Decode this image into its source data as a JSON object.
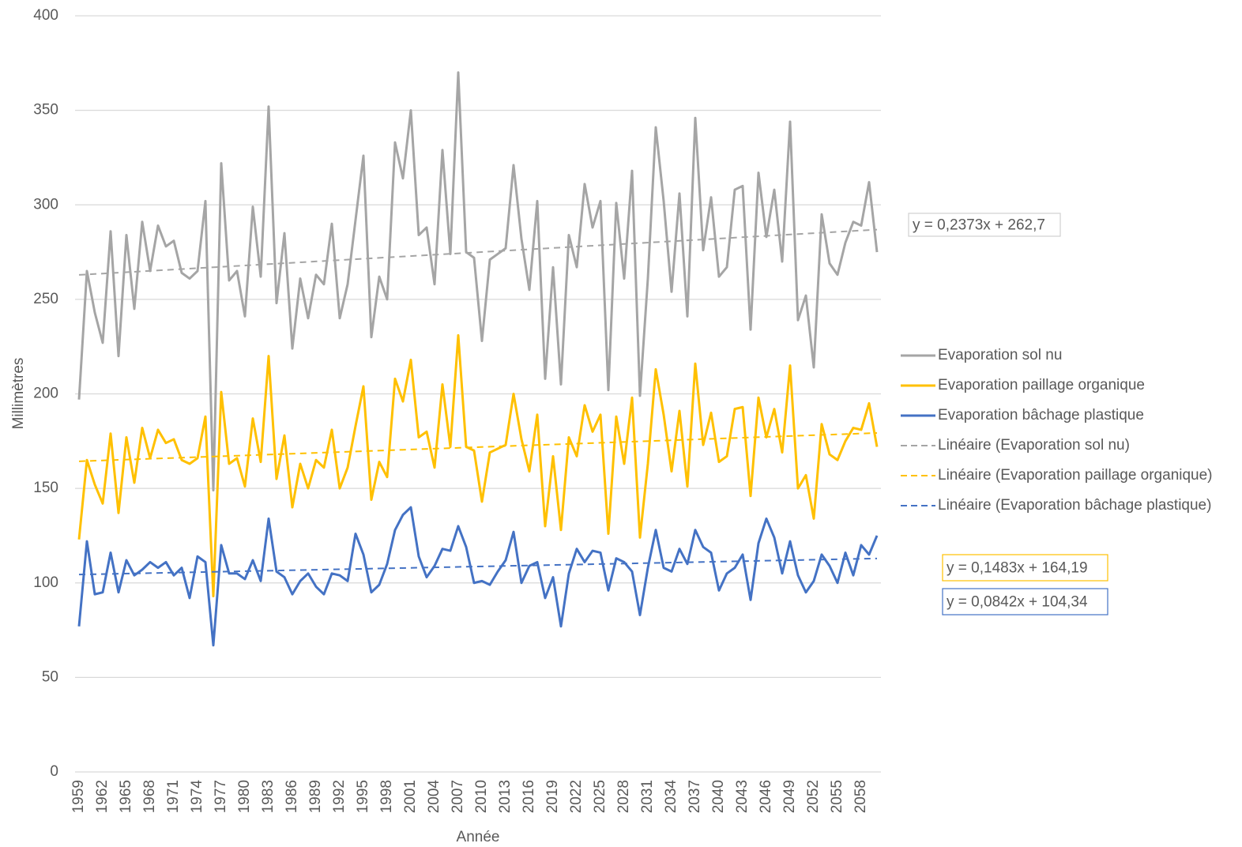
{
  "chart_data": {
    "type": "line",
    "x_label": "Année",
    "y_label": "Millimètres",
    "x": [
      1959,
      1960,
      1961,
      1962,
      1963,
      1964,
      1965,
      1966,
      1967,
      1968,
      1969,
      1970,
      1971,
      1972,
      1973,
      1974,
      1975,
      1976,
      1977,
      1978,
      1979,
      1980,
      1981,
      1982,
      1983,
      1984,
      1985,
      1986,
      1987,
      1988,
      1989,
      1990,
      1991,
      1992,
      1993,
      1994,
      1995,
      1996,
      1997,
      1998,
      1999,
      2000,
      2001,
      2002,
      2003,
      2004,
      2005,
      2006,
      2007,
      2008,
      2009,
      2010,
      2011,
      2012,
      2013,
      2014,
      2015,
      2016,
      2017,
      2018,
      2019,
      2020,
      2021,
      2022,
      2023,
      2024,
      2025,
      2026,
      2027,
      2028,
      2029,
      2030,
      2031,
      2032,
      2033,
      2034,
      2035,
      2036,
      2037,
      2038,
      2039,
      2040,
      2041,
      2042,
      2043,
      2044,
      2045,
      2046,
      2047,
      2048,
      2049,
      2050,
      2051,
      2052,
      2053,
      2054,
      2055,
      2056,
      2057,
      2058,
      2059,
      2060
    ],
    "xlim": [
      1959,
      2060
    ],
    "xticks": [
      1959,
      1962,
      1965,
      1968,
      1971,
      1974,
      1977,
      1980,
      1983,
      1986,
      1989,
      1992,
      1995,
      1998,
      2001,
      2004,
      2007,
      2010,
      2013,
      2016,
      2019,
      2022,
      2025,
      2028,
      2031,
      2034,
      2037,
      2040,
      2043,
      2046,
      2049,
      2052,
      2055,
      2058
    ],
    "ylim": [
      0,
      400
    ],
    "yticks": [
      0,
      50,
      100,
      150,
      200,
      250,
      300,
      350,
      400
    ],
    "grid": true,
    "legend": "right",
    "series": [
      {
        "name": "Evaporation sol nu",
        "color": "#a5a5a5",
        "values": [
          197,
          265,
          243,
          227,
          286,
          220,
          284,
          245,
          291,
          265,
          289,
          278,
          281,
          264,
          261,
          265,
          302,
          149,
          322,
          260,
          265,
          241,
          299,
          262,
          352,
          248,
          285,
          224,
          261,
          240,
          263,
          258,
          290,
          240,
          258,
          292,
          326,
          230,
          262,
          250,
          333,
          314,
          350,
          284,
          288,
          258,
          329,
          274,
          370,
          275,
          272,
          228,
          271,
          274,
          277,
          321,
          282,
          255,
          302,
          208,
          267,
          205,
          284,
          267,
          311,
          288,
          302,
          202,
          301,
          261,
          318,
          199,
          261,
          341,
          302,
          254,
          306,
          241,
          346,
          276,
          304,
          262,
          267,
          308,
          310,
          234,
          317,
          283,
          308,
          270,
          344,
          239,
          252,
          214,
          295,
          269,
          263,
          280,
          291,
          289,
          312,
          275
        ]
      },
      {
        "name": "Evaporation paillage organique",
        "color": "#ffc000",
        "values": [
          123,
          165,
          152,
          142,
          179,
          137,
          177,
          153,
          182,
          166,
          181,
          174,
          176,
          165,
          163,
          166,
          188,
          93,
          201,
          163,
          166,
          151,
          187,
          164,
          220,
          155,
          178,
          140,
          163,
          150,
          165,
          161,
          181,
          150,
          161,
          183,
          204,
          144,
          164,
          156,
          208,
          196,
          218,
          177,
          180,
          161,
          205,
          172,
          231,
          172,
          170,
          143,
          169,
          171,
          173,
          200,
          176,
          159,
          189,
          130,
          167,
          128,
          177,
          167,
          194,
          180,
          189,
          126,
          188,
          163,
          198,
          124,
          163,
          213,
          189,
          159,
          191,
          151,
          216,
          173,
          190,
          164,
          167,
          192,
          193,
          146,
          198,
          177,
          192,
          169,
          215,
          150,
          157,
          134,
          184,
          168,
          165,
          175,
          182,
          181,
          195,
          172
        ]
      },
      {
        "name": "Evaporation bâchage plastique",
        "color": "#4472c4",
        "values": [
          77,
          122,
          94,
          95,
          116,
          95,
          112,
          104,
          107,
          111,
          108,
          111,
          104,
          108,
          92,
          114,
          111,
          67,
          120,
          105,
          105,
          102,
          112,
          101,
          134,
          106,
          103,
          94,
          101,
          105,
          98,
          94,
          105,
          104,
          101,
          126,
          115,
          95,
          99,
          110,
          128,
          136,
          140,
          114,
          103,
          109,
          118,
          117,
          130,
          119,
          100,
          101,
          99,
          106,
          112,
          127,
          100,
          109,
          111,
          92,
          103,
          77,
          105,
          118,
          111,
          117,
          116,
          96,
          113,
          111,
          106,
          83,
          108,
          128,
          108,
          106,
          118,
          110,
          128,
          119,
          116,
          96,
          105,
          108,
          115,
          91,
          121,
          134,
          124,
          105,
          122,
          104,
          95,
          101,
          115,
          109,
          100,
          116,
          104,
          120,
          115,
          125
        ]
      }
    ],
    "trendlines": [
      {
        "name": "Linéaire (Evaporation sol nu)",
        "color": "#a5a5a5",
        "slope": 0.2373,
        "intercept": 262.7,
        "label": "y = 0,2373x + 262,7"
      },
      {
        "name": "Linéaire (Evaporation paillage organique)",
        "color": "#ffc000",
        "slope": 0.1483,
        "intercept": 164.19,
        "label": "y = 0,1483x + 164,19"
      },
      {
        "name": "Linéaire (Evaporation bâchage plastique)",
        "color": "#4472c4",
        "slope": 0.0842,
        "intercept": 104.34,
        "label": "y = 0,0842x + 104,34"
      }
    ]
  }
}
